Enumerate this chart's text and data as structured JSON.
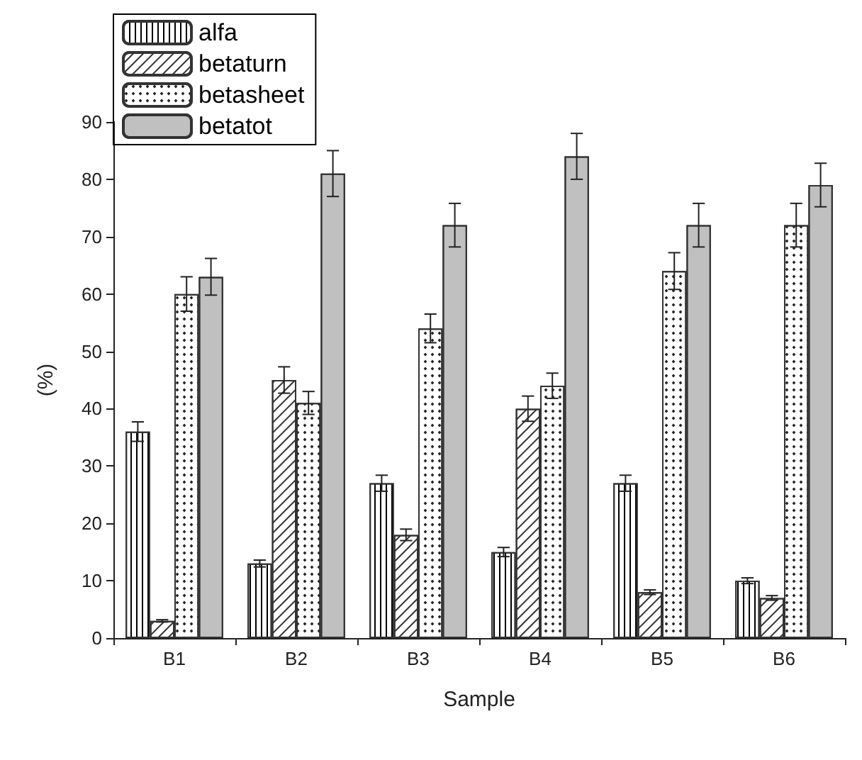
{
  "chart_data": {
    "type": "bar",
    "xlabel": "Sample",
    "ylabel": "(%)",
    "categories": [
      "B1",
      "B2",
      "B3",
      "B4",
      "B5",
      "B6"
    ],
    "ylim": [
      0,
      90
    ],
    "yticks": [
      0,
      10,
      20,
      30,
      40,
      50,
      60,
      70,
      80,
      90
    ],
    "grid": false,
    "legend": "top left",
    "series": [
      {
        "name": "alfa",
        "color": "#ffffff",
        "values": [
          36,
          13,
          27,
          15,
          27,
          10
        ],
        "errors": [
          1.7,
          0.6,
          1.4,
          0.8,
          1.4,
          0.5
        ]
      },
      {
        "name": "betaturn",
        "color": "#ffffff",
        "values": [
          3,
          45,
          18,
          40,
          8,
          7
        ],
        "errors": [
          0.2,
          2.3,
          1,
          2.2,
          0.4,
          0.4
        ]
      },
      {
        "name": "betasheet",
        "color": "#ffffff",
        "values": [
          60,
          41,
          54,
          44,
          64,
          72
        ],
        "errors": [
          3,
          2,
          2.5,
          2.2,
          3.2,
          3.8
        ]
      },
      {
        "name": "betatot",
        "color": "#c0c0c0",
        "values": [
          63,
          81,
          72,
          84,
          72,
          79
        ],
        "errors": [
          3.2,
          4,
          3.8,
          4,
          3.8,
          3.8
        ]
      }
    ]
  }
}
